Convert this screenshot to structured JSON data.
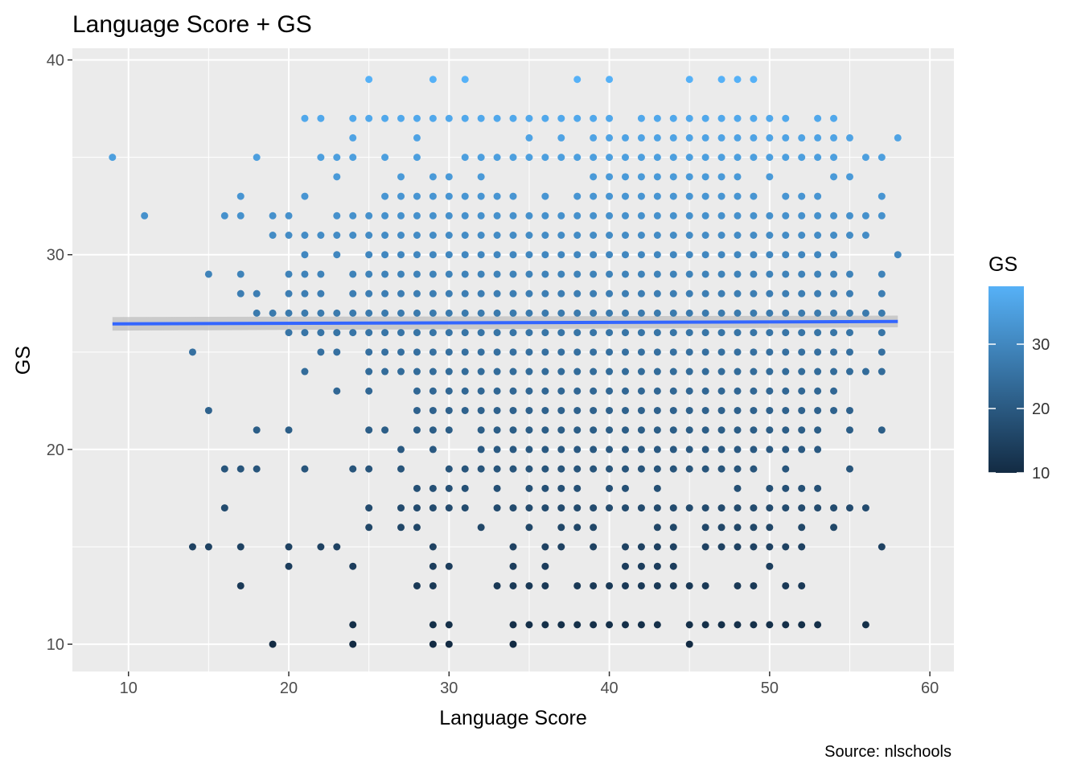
{
  "chart_data": {
    "type": "scatter",
    "title": "Language Score + GS",
    "xlabel": "Language Score",
    "ylabel": "GS",
    "caption": "Source: nlschools",
    "xlim": [
      6.5,
      61.5
    ],
    "ylim": [
      8.6,
      40.6
    ],
    "x_ticks": [
      10,
      20,
      30,
      40,
      50,
      60
    ],
    "y_ticks": [
      10,
      20,
      30,
      40
    ],
    "grid": true,
    "panel_background": "#ebebeb",
    "gridline_color": "#ffffff",
    "color_scale": {
      "title": "GS",
      "low_color": "#132b43",
      "high_color": "#56b1f7",
      "range": [
        10,
        39
      ],
      "breaks": [
        10,
        20,
        30
      ],
      "legend_position": "right"
    },
    "trend_line": {
      "method": "lm",
      "color": "#3366ff",
      "band_color": "#bfbfbf",
      "x": [
        9,
        58
      ],
      "y": [
        26.45,
        26.57
      ],
      "band_halfwidth": [
        0.35,
        0.3
      ]
    },
    "points_x_groups": [
      {
        "x": 9,
        "y": [
          35
        ]
      },
      {
        "x": 11,
        "y": [
          32
        ]
      },
      {
        "x": 14,
        "y": [
          25,
          15
        ]
      },
      {
        "x": 15,
        "y": [
          29,
          22,
          15
        ]
      },
      {
        "x": 16,
        "y": [
          32,
          19,
          17
        ]
      },
      {
        "x": 17,
        "y": [
          33,
          32,
          29,
          28,
          19,
          15,
          13
        ]
      },
      {
        "x": 18,
        "y": [
          35,
          28,
          27,
          21,
          19
        ]
      },
      {
        "x": 19,
        "y": [
          32,
          31,
          27,
          10
        ]
      },
      {
        "x": 20,
        "y": [
          32,
          31,
          29,
          28,
          27,
          26,
          21,
          15,
          14
        ]
      },
      {
        "x": 21,
        "y": [
          37,
          33,
          31,
          30,
          29,
          28,
          27,
          26,
          24,
          19
        ]
      },
      {
        "x": 22,
        "y": [
          37,
          35,
          31,
          29,
          28,
          27,
          26,
          25,
          15
        ]
      },
      {
        "x": 23,
        "y": [
          35,
          34,
          32,
          31,
          30,
          27,
          26,
          25,
          23,
          15
        ]
      },
      {
        "x": 24,
        "y": [
          37,
          36,
          35,
          32,
          31,
          29,
          28,
          27,
          26,
          19,
          14,
          11,
          10
        ]
      },
      {
        "x": 25,
        "y": [
          39,
          37,
          32,
          31,
          30,
          29,
          28,
          27,
          26,
          25,
          24,
          23,
          21,
          19,
          17,
          16
        ]
      },
      {
        "x": 26,
        "y": [
          37,
          35,
          33,
          32,
          31,
          30,
          29,
          28,
          27,
          26,
          25,
          24,
          21
        ]
      },
      {
        "x": 27,
        "y": [
          37,
          34,
          33,
          32,
          31,
          30,
          29,
          28,
          27,
          26,
          25,
          24,
          20,
          19,
          17,
          16
        ]
      },
      {
        "x": 28,
        "y": [
          37,
          36,
          35,
          33,
          32,
          31,
          30,
          29,
          28,
          27,
          26,
          25,
          24,
          23,
          22,
          21,
          18,
          17,
          16,
          13
        ]
      },
      {
        "x": 29,
        "y": [
          39,
          37,
          34,
          33,
          32,
          31,
          30,
          29,
          28,
          27,
          26,
          25,
          24,
          23,
          22,
          21,
          20,
          18,
          17,
          15,
          14,
          13,
          11,
          10
        ]
      },
      {
        "x": 30,
        "y": [
          37,
          34,
          33,
          32,
          31,
          30,
          29,
          28,
          27,
          26,
          25,
          24,
          23,
          22,
          21,
          19,
          18,
          17,
          14,
          11,
          10
        ]
      },
      {
        "x": 31,
        "y": [
          39,
          37,
          35,
          33,
          32,
          31,
          30,
          29,
          28,
          27,
          26,
          25,
          24,
          23,
          22,
          19,
          18,
          17
        ]
      },
      {
        "x": 32,
        "y": [
          37,
          35,
          34,
          33,
          32,
          31,
          30,
          29,
          28,
          27,
          26,
          25,
          24,
          23,
          22,
          21,
          20,
          19,
          16
        ]
      },
      {
        "x": 33,
        "y": [
          37,
          35,
          33,
          32,
          31,
          30,
          29,
          28,
          27,
          26,
          25,
          24,
          23,
          22,
          21,
          20,
          19,
          18,
          17,
          13
        ]
      },
      {
        "x": 34,
        "y": [
          37,
          35,
          33,
          32,
          31,
          30,
          29,
          28,
          27,
          26,
          25,
          24,
          23,
          22,
          21,
          20,
          19,
          17,
          15,
          14,
          13,
          11,
          10
        ]
      },
      {
        "x": 35,
        "y": [
          37,
          36,
          35,
          32,
          31,
          30,
          29,
          28,
          27,
          26,
          25,
          24,
          23,
          22,
          21,
          20,
          19,
          18,
          17,
          16,
          13,
          11
        ]
      },
      {
        "x": 36,
        "y": [
          37,
          35,
          33,
          32,
          31,
          30,
          29,
          28,
          27,
          26,
          25,
          24,
          23,
          22,
          21,
          20,
          19,
          18,
          17,
          15,
          14,
          13,
          11
        ]
      },
      {
        "x": 37,
        "y": [
          37,
          36,
          35,
          32,
          31,
          30,
          29,
          28,
          27,
          26,
          25,
          24,
          23,
          22,
          21,
          20,
          19,
          18,
          17,
          16,
          15,
          11
        ]
      },
      {
        "x": 38,
        "y": [
          39,
          37,
          35,
          33,
          32,
          31,
          30,
          29,
          28,
          27,
          26,
          25,
          24,
          23,
          22,
          21,
          20,
          19,
          18,
          17,
          16,
          13,
          11
        ]
      },
      {
        "x": 39,
        "y": [
          37,
          36,
          35,
          34,
          33,
          32,
          31,
          30,
          29,
          28,
          27,
          26,
          25,
          24,
          23,
          22,
          21,
          20,
          19,
          17,
          16,
          15,
          13,
          11
        ]
      },
      {
        "x": 40,
        "y": [
          39,
          37,
          36,
          35,
          34,
          33,
          32,
          31,
          30,
          29,
          28,
          27,
          26,
          25,
          24,
          23,
          22,
          21,
          20,
          19,
          18,
          17,
          13,
          11
        ]
      },
      {
        "x": 41,
        "y": [
          36,
          35,
          34,
          33,
          32,
          31,
          30,
          29,
          28,
          27,
          26,
          25,
          24,
          23,
          22,
          21,
          20,
          19,
          18,
          17,
          15,
          14,
          13,
          11
        ]
      },
      {
        "x": 42,
        "y": [
          37,
          36,
          35,
          34,
          33,
          32,
          31,
          30,
          29,
          28,
          27,
          26,
          25,
          24,
          23,
          22,
          21,
          20,
          19,
          17,
          15,
          14,
          13,
          11
        ]
      },
      {
        "x": 43,
        "y": [
          37,
          36,
          35,
          34,
          33,
          32,
          31,
          30,
          29,
          28,
          27,
          26,
          25,
          24,
          23,
          22,
          21,
          20,
          19,
          18,
          17,
          16,
          15,
          14,
          13,
          11
        ]
      },
      {
        "x": 44,
        "y": [
          37,
          36,
          35,
          34,
          33,
          32,
          31,
          30,
          29,
          28,
          27,
          26,
          25,
          24,
          23,
          22,
          21,
          20,
          19,
          17,
          16,
          15,
          14,
          13
        ]
      },
      {
        "x": 45,
        "y": [
          39,
          37,
          36,
          35,
          34,
          33,
          32,
          31,
          30,
          29,
          28,
          27,
          26,
          25,
          24,
          23,
          22,
          21,
          20,
          19,
          17,
          13,
          11,
          10
        ]
      },
      {
        "x": 46,
        "y": [
          37,
          36,
          35,
          34,
          33,
          32,
          31,
          30,
          29,
          28,
          27,
          26,
          25,
          24,
          23,
          22,
          21,
          20,
          19,
          17,
          16,
          15,
          13,
          11
        ]
      },
      {
        "x": 47,
        "y": [
          39,
          37,
          36,
          35,
          34,
          33,
          32,
          31,
          30,
          29,
          28,
          27,
          26,
          25,
          24,
          23,
          22,
          21,
          20,
          19,
          17,
          16,
          15,
          11
        ]
      },
      {
        "x": 48,
        "y": [
          39,
          37,
          36,
          35,
          34,
          33,
          32,
          31,
          30,
          29,
          28,
          27,
          26,
          25,
          24,
          23,
          22,
          21,
          20,
          19,
          18,
          17,
          16,
          15,
          13,
          11
        ]
      },
      {
        "x": 49,
        "y": [
          39,
          37,
          36,
          35,
          33,
          32,
          31,
          30,
          29,
          28,
          27,
          26,
          25,
          24,
          23,
          22,
          21,
          20,
          19,
          17,
          16,
          15,
          13,
          11
        ]
      },
      {
        "x": 50,
        "y": [
          37,
          36,
          35,
          34,
          32,
          31,
          30,
          29,
          28,
          27,
          26,
          25,
          24,
          23,
          22,
          21,
          20,
          18,
          17,
          16,
          15,
          14,
          11
        ]
      },
      {
        "x": 51,
        "y": [
          37,
          36,
          35,
          33,
          32,
          31,
          30,
          29,
          28,
          27,
          26,
          25,
          24,
          23,
          22,
          21,
          20,
          19,
          18,
          17,
          15,
          13,
          11
        ]
      },
      {
        "x": 52,
        "y": [
          36,
          35,
          33,
          32,
          31,
          30,
          29,
          28,
          27,
          26,
          25,
          24,
          23,
          22,
          21,
          20,
          18,
          17,
          16,
          15,
          13,
          11
        ]
      },
      {
        "x": 53,
        "y": [
          37,
          36,
          35,
          33,
          32,
          31,
          30,
          29,
          28,
          27,
          26,
          25,
          24,
          23,
          22,
          21,
          20,
          18,
          17,
          11
        ]
      },
      {
        "x": 54,
        "y": [
          37,
          36,
          35,
          34,
          32,
          31,
          30,
          29,
          28,
          27,
          26,
          25,
          24,
          23,
          22,
          17,
          16
        ]
      },
      {
        "x": 55,
        "y": [
          36,
          34,
          32,
          31,
          29,
          28,
          27,
          26,
          25,
          24,
          22,
          21,
          19,
          17
        ]
      },
      {
        "x": 56,
        "y": [
          35,
          32,
          31,
          27,
          24,
          17,
          11
        ]
      },
      {
        "x": 57,
        "y": [
          35,
          33,
          32,
          29,
          28,
          27,
          26,
          25,
          24,
          21,
          15
        ]
      },
      {
        "x": 58,
        "y": [
          36,
          30
        ]
      }
    ]
  }
}
